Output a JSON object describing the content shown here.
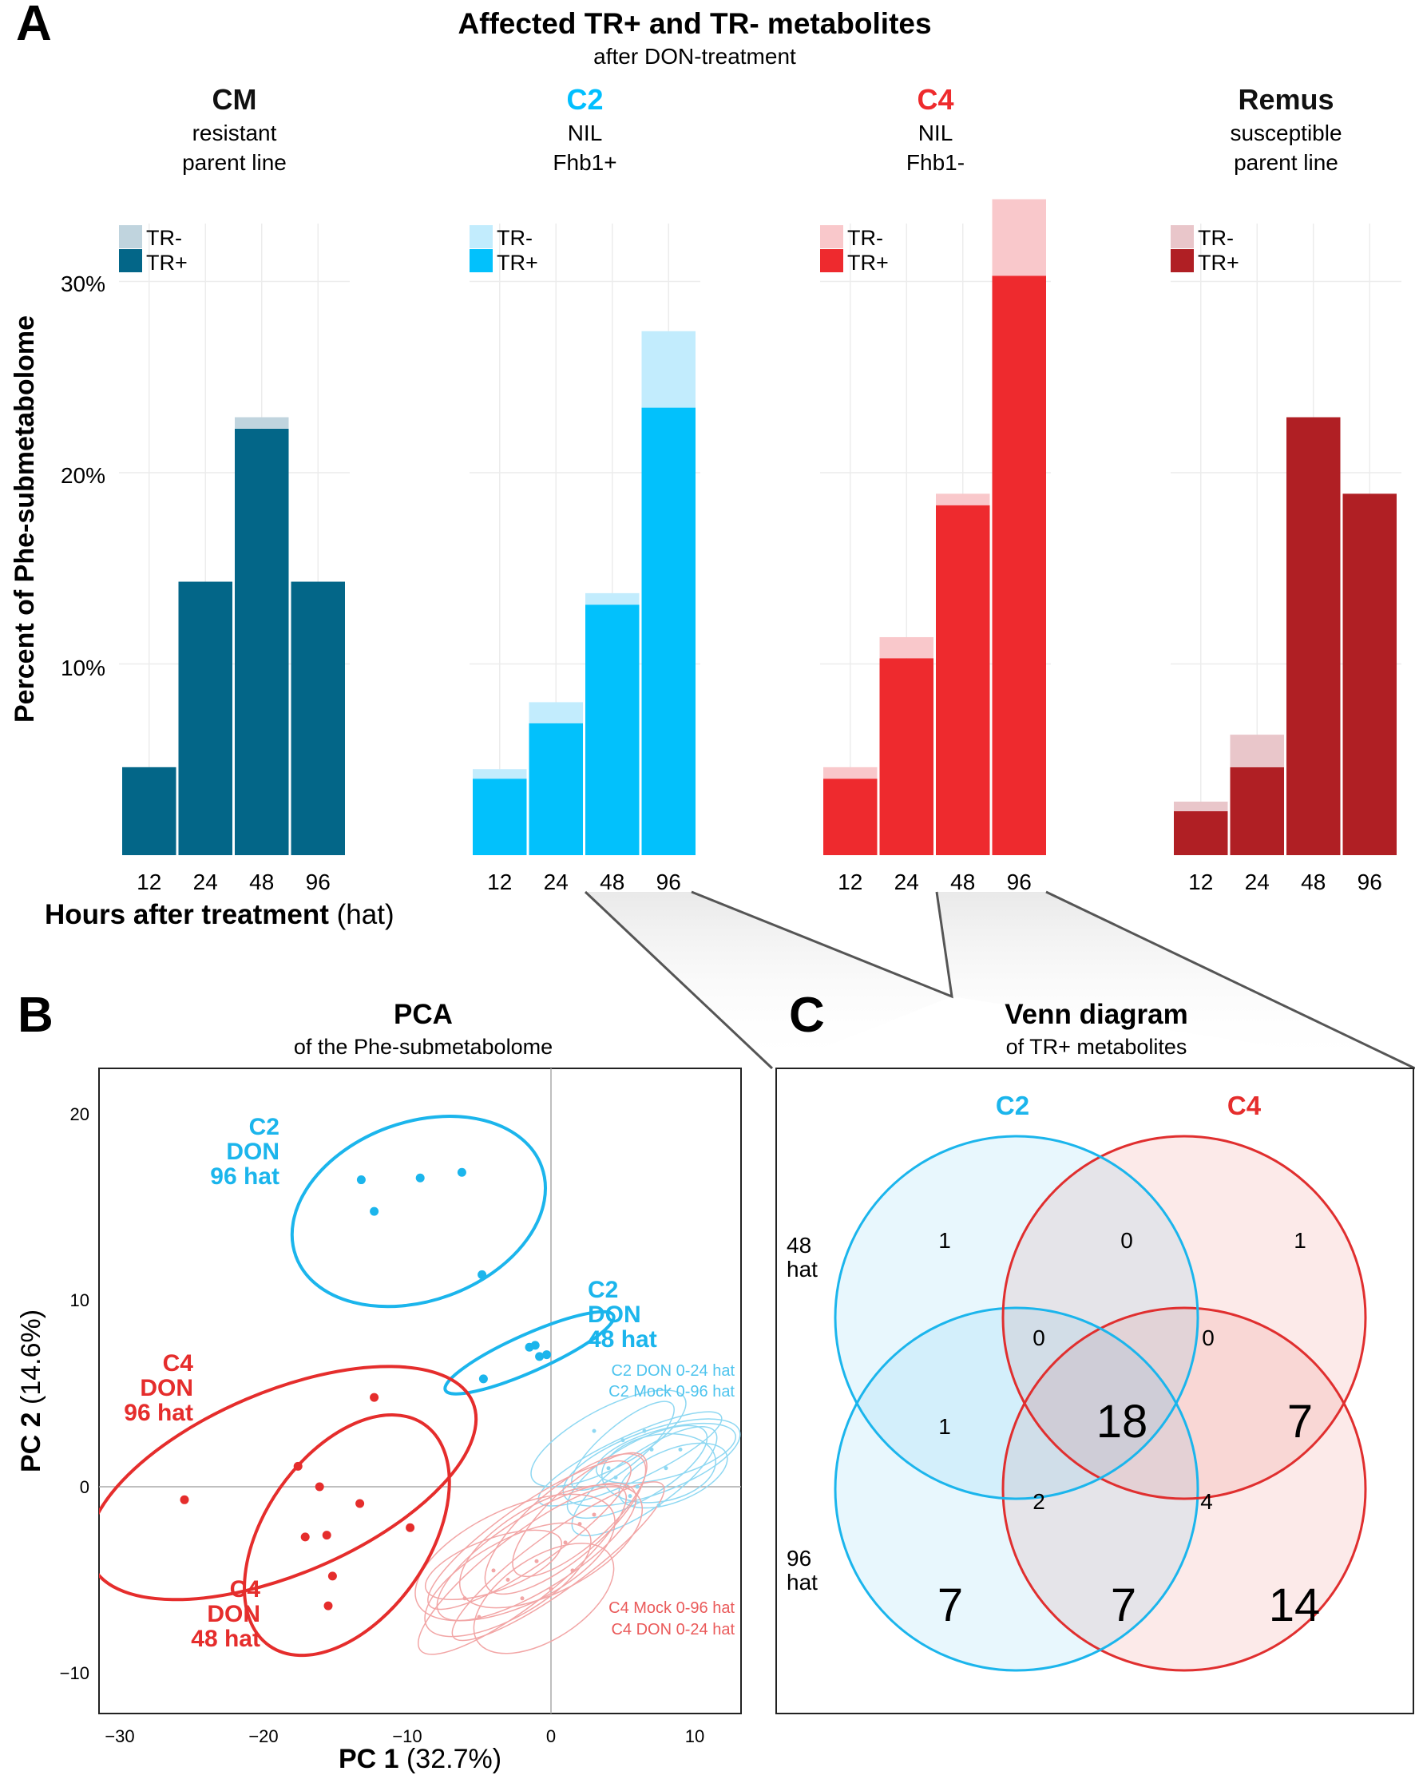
{
  "panel_a": {
    "letter": "A",
    "title": "Affected TR+ and TR- metabolites",
    "subtitle": "after DON-treatment",
    "ylabel": "Percent of Phe-submetabolome",
    "xlabel_bold": "Hours after treatment",
    "xlabel_unit": "(hat)",
    "yticks": [
      "10%",
      "20%",
      "30%"
    ],
    "categories": [
      "12",
      "24",
      "48",
      "96"
    ],
    "facets": [
      {
        "name": "CM",
        "line1": "resistant",
        "line2": "parent line",
        "name_color": "#111111",
        "color_trp": "#036688",
        "color_trm": "#c0d4de",
        "legend": [
          "TR-",
          "TR+"
        ],
        "trp": [
          4.6,
          14.3,
          22.3,
          14.3
        ],
        "trm": [
          0,
          0,
          0.6,
          0
        ]
      },
      {
        "name": "C2",
        "line1": "NIL",
        "line2": "Fhb1+",
        "name_color": "#00bfff",
        "color_trp": "#02c1fc",
        "color_trm": "#c2ecfd",
        "legend": [
          "TR-",
          "TR+"
        ],
        "trp": [
          4.0,
          6.9,
          13.1,
          23.4
        ],
        "trm": [
          0.5,
          1.1,
          0.6,
          4.0
        ]
      },
      {
        "name": "C4",
        "line1": "NIL",
        "line2": "Fhb1-",
        "name_color": "#ee2b2d",
        "color_trp": "#ee2a2e",
        "color_trm": "#f9c8cb",
        "legend": [
          "TR-",
          "TR+"
        ],
        "trp": [
          4.0,
          10.3,
          18.3,
          30.3
        ],
        "trm": [
          0.6,
          1.1,
          0.6,
          4.0
        ]
      },
      {
        "name": "Remus",
        "line1": "susceptible",
        "line2": "parent line",
        "name_color": "#111111",
        "color_trp": "#b01f24",
        "color_trm": "#e9c6ca",
        "legend": [
          "TR-",
          "TR+"
        ],
        "trp": [
          2.3,
          4.6,
          22.9,
          18.9
        ],
        "trm": [
          0.5,
          1.7,
          0,
          0
        ]
      }
    ]
  },
  "panel_b": {
    "letter": "B",
    "title": "PCA",
    "subtitle": "of the Phe-submetabolome",
    "xlabel_bold": "PC 1",
    "xlabel_rest": "(32.7%)",
    "ylabel_bold": "PC 2",
    "ylabel_rest": "(14.6%)",
    "xticks": [
      "−30",
      "−20",
      "−10",
      "0",
      "10"
    ],
    "yticks": [
      "20",
      "10",
      "0",
      "−10"
    ],
    "labels": {
      "c2_96": [
        "C2",
        "DON",
        "96 hat"
      ],
      "c2_48": [
        "C2",
        "DON",
        "48 hat"
      ],
      "c4_96": [
        "C4",
        "DON",
        "96 hat"
      ],
      "c4_48": [
        "C4",
        "DON",
        "48 hat"
      ],
      "c2_small": [
        "C2 DON 0-24 hat",
        "C2 Mock 0-96 hat"
      ],
      "c4_small": [
        "C4 Mock 0-96 hat",
        "C4 DON 0-24 hat"
      ]
    },
    "colors": {
      "c2": "#1bb5ec",
      "c4": "#e52d2c",
      "c2_light": "#8fd8f2",
      "c4_light": "#f2a6a6"
    }
  },
  "chart_data": [
    {
      "type": "bar",
      "title": "Affected TR+ and TR- metabolites (after DON-treatment)",
      "xlabel": "Hours after treatment (hat)",
      "ylabel": "Percent of Phe-submetabolome",
      "ylim": [
        0,
        34
      ],
      "categories": [
        "12",
        "24",
        "48",
        "96"
      ],
      "stacked": true,
      "facets": [
        {
          "name": "CM",
          "series": [
            {
              "name": "TR+",
              "values": [
                4.6,
                14.3,
                22.3,
                14.3
              ]
            },
            {
              "name": "TR-",
              "values": [
                0,
                0,
                0.6,
                0
              ]
            }
          ]
        },
        {
          "name": "C2",
          "series": [
            {
              "name": "TR+",
              "values": [
                4.0,
                6.9,
                13.1,
                23.4
              ]
            },
            {
              "name": "TR-",
              "values": [
                0.5,
                1.1,
                0.6,
                4.0
              ]
            }
          ]
        },
        {
          "name": "C4",
          "series": [
            {
              "name": "TR+",
              "values": [
                4.0,
                10.3,
                18.3,
                30.3
              ]
            },
            {
              "name": "TR-",
              "values": [
                0.6,
                1.1,
                0.6,
                4.0
              ]
            }
          ]
        },
        {
          "name": "Remus",
          "series": [
            {
              "name": "TR+",
              "values": [
                2.3,
                4.6,
                22.9,
                18.9
              ]
            },
            {
              "name": "TR-",
              "values": [
                0.5,
                1.7,
                0,
                0
              ]
            }
          ]
        }
      ]
    },
    {
      "type": "scatter",
      "title": "PCA of the Phe-submetabolome",
      "xlabel": "PC 1 (32.7%)",
      "ylabel": "PC 2 (14.6%)",
      "xlim": [
        -30,
        13
      ],
      "ylim": [
        -12.5,
        22
      ],
      "series": [
        {
          "name": "C2 DON 96 hat",
          "points": [
            [
              -13.2,
              16.5
            ],
            [
              -9.1,
              16.6
            ],
            [
              -6.2,
              16.9
            ],
            [
              -12.3,
              14.8
            ],
            [
              -4.8,
              11.4
            ]
          ],
          "ellipse": {
            "cx": -9.2,
            "cy": 14.8,
            "rx": 9.1,
            "ry": 4.8,
            "angle_deg": -20
          }
        },
        {
          "name": "C2 DON 48 hat",
          "points": [
            [
              -1.5,
              7.5
            ],
            [
              -1.1,
              7.6
            ],
            [
              -0.8,
              7.0
            ],
            [
              -0.3,
              7.1
            ],
            [
              -4.7,
              5.8
            ]
          ],
          "ellipse": {
            "cx": -1.5,
            "cy": 7.2,
            "rx": 6.4,
            "ry": 1.0,
            "angle_deg": -24
          }
        },
        {
          "name": "C4 DON 96 hat",
          "points": [
            [
              -12.3,
              4.8
            ],
            [
              -17.6,
              1.1
            ],
            [
              -25.5,
              -0.7
            ],
            [
              -16.1,
              0.0
            ],
            [
              -13.3,
              -0.9
            ],
            [
              -9.8,
              -2.2
            ]
          ],
          "ellipse": {
            "cx": -18.7,
            "cy": 0.2,
            "rx": 14.4,
            "ry": 4.9,
            "angle_deg": -23
          }
        },
        {
          "name": "C4 DON 48 hat",
          "points": [
            [
              -17.1,
              -2.7
            ],
            [
              -15.6,
              -2.6
            ],
            [
              -15.2,
              -4.8
            ],
            [
              -15.5,
              -6.4
            ]
          ],
          "ellipse": {
            "cx": -14.2,
            "cy": -2.6,
            "rx": 9.4,
            "ry": 4.4,
            "angle_deg": -55
          }
        }
      ],
      "annotations": [
        "C2 DON 0-24 hat",
        "C2 Mock 0-96 hat",
        "C4 Mock 0-96 hat",
        "C4 DON 0-24 hat"
      ]
    }
  ],
  "panel_c": {
    "letter": "C",
    "title": "Venn diagram",
    "subtitle": "of TR+ metabolites",
    "set_c2": "C2",
    "set_c4": "C4",
    "row_48": [
      "48",
      "hat"
    ],
    "row_96": [
      "96",
      "hat"
    ],
    "counts": {
      "c2_48_only": "1",
      "c2_48_c4_48": "0",
      "c4_48_only": "1",
      "c2_48_c2_96": "0",
      "c4_48_c4_96_top": "0",
      "c2_48_c2_96_left": "1",
      "all_four": "18",
      "c4_48_c4_96": "7",
      "c2_96_c4_96_c2_48": "2",
      "c2_96_c4_96_c4_48": "4",
      "c2_96_only": "7",
      "c2_96_c4_96": "7",
      "c4_96_only": "14"
    },
    "colors": {
      "c2": "#1bb5ec",
      "c4": "#e52d2c"
    }
  }
}
